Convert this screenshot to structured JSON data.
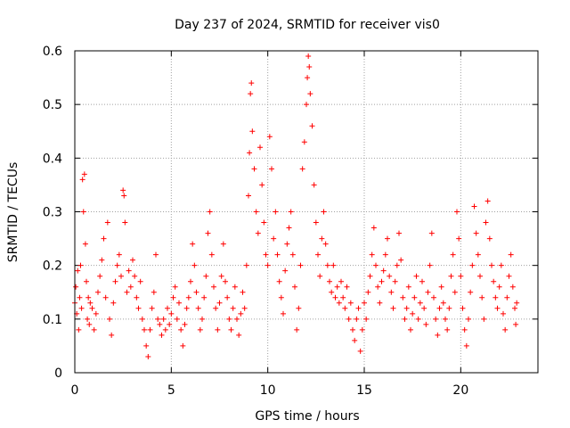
{
  "chart_data": {
    "type": "scatter",
    "title": "Day 237 of 2024, SRMTID for receiver vis0",
    "xlabel": "GPS time / hours",
    "ylabel": "SRMTID / TECUs",
    "xlim": [
      0,
      24
    ],
    "ylim": [
      0,
      0.6
    ],
    "xticks": [
      0,
      5,
      10,
      15,
      20
    ],
    "xtick_labels": [
      "0",
      "5",
      "10",
      "15",
      "20"
    ],
    "yticks": [
      0,
      0.1,
      0.2,
      0.3,
      0.4,
      0.5,
      0.6
    ],
    "ytick_labels": [
      "0",
      "0.1",
      "0.2",
      "0.3",
      "0.4",
      "0.5",
      "0.6"
    ],
    "grid": true,
    "marker": "+",
    "series": [
      {
        "name": "SRMTID",
        "color": "#ff0000",
        "points": [
          [
            0.0,
            0.13
          ],
          [
            0.05,
            0.16
          ],
          [
            0.1,
            0.11
          ],
          [
            0.15,
            0.19
          ],
          [
            0.2,
            0.08
          ],
          [
            0.25,
            0.14
          ],
          [
            0.3,
            0.2
          ],
          [
            0.35,
            0.12
          ],
          [
            0.4,
            0.36
          ],
          [
            0.45,
            0.3
          ],
          [
            0.5,
            0.37
          ],
          [
            0.55,
            0.24
          ],
          [
            0.6,
            0.17
          ],
          [
            0.65,
            0.1
          ],
          [
            0.7,
            0.14
          ],
          [
            0.75,
            0.09
          ],
          [
            0.8,
            0.13
          ],
          [
            0.9,
            0.12
          ],
          [
            1.0,
            0.08
          ],
          [
            1.1,
            0.11
          ],
          [
            1.2,
            0.15
          ],
          [
            1.3,
            0.18
          ],
          [
            1.4,
            0.21
          ],
          [
            1.5,
            0.25
          ],
          [
            1.6,
            0.14
          ],
          [
            1.7,
            0.28
          ],
          [
            1.8,
            0.1
          ],
          [
            1.9,
            0.07
          ],
          [
            2.0,
            0.13
          ],
          [
            2.1,
            0.17
          ],
          [
            2.2,
            0.2
          ],
          [
            2.3,
            0.22
          ],
          [
            2.4,
            0.18
          ],
          [
            2.5,
            0.34
          ],
          [
            2.55,
            0.33
          ],
          [
            2.6,
            0.28
          ],
          [
            2.7,
            0.15
          ],
          [
            2.8,
            0.19
          ],
          [
            2.9,
            0.16
          ],
          [
            3.0,
            0.21
          ],
          [
            3.1,
            0.18
          ],
          [
            3.2,
            0.14
          ],
          [
            3.3,
            0.12
          ],
          [
            3.4,
            0.17
          ],
          [
            3.5,
            0.1
          ],
          [
            3.6,
            0.08
          ],
          [
            3.7,
            0.05
          ],
          [
            3.8,
            0.03
          ],
          [
            3.9,
            0.08
          ],
          [
            4.0,
            0.12
          ],
          [
            4.1,
            0.15
          ],
          [
            4.2,
            0.22
          ],
          [
            4.3,
            0.1
          ],
          [
            4.4,
            0.09
          ],
          [
            4.5,
            0.07
          ],
          [
            4.6,
            0.1
          ],
          [
            4.7,
            0.08
          ],
          [
            4.8,
            0.12
          ],
          [
            4.9,
            0.09
          ],
          [
            5.0,
            0.11
          ],
          [
            5.1,
            0.14
          ],
          [
            5.2,
            0.16
          ],
          [
            5.3,
            0.1
          ],
          [
            5.4,
            0.13
          ],
          [
            5.5,
            0.08
          ],
          [
            5.6,
            0.05
          ],
          [
            5.7,
            0.09
          ],
          [
            5.8,
            0.12
          ],
          [
            5.9,
            0.14
          ],
          [
            6.0,
            0.17
          ],
          [
            6.1,
            0.24
          ],
          [
            6.2,
            0.2
          ],
          [
            6.3,
            0.15
          ],
          [
            6.4,
            0.12
          ],
          [
            6.5,
            0.08
          ],
          [
            6.6,
            0.1
          ],
          [
            6.7,
            0.14
          ],
          [
            6.8,
            0.18
          ],
          [
            6.9,
            0.26
          ],
          [
            7.0,
            0.3
          ],
          [
            7.1,
            0.22
          ],
          [
            7.2,
            0.16
          ],
          [
            7.3,
            0.12
          ],
          [
            7.4,
            0.08
          ],
          [
            7.5,
            0.13
          ],
          [
            7.6,
            0.18
          ],
          [
            7.7,
            0.24
          ],
          [
            7.8,
            0.17
          ],
          [
            7.9,
            0.14
          ],
          [
            8.0,
            0.1
          ],
          [
            8.1,
            0.08
          ],
          [
            8.2,
            0.12
          ],
          [
            8.3,
            0.16
          ],
          [
            8.4,
            0.1
          ],
          [
            8.5,
            0.07
          ],
          [
            8.6,
            0.11
          ],
          [
            8.7,
            0.15
          ],
          [
            8.8,
            0.12
          ],
          [
            8.9,
            0.2
          ],
          [
            9.0,
            0.33
          ],
          [
            9.05,
            0.41
          ],
          [
            9.1,
            0.52
          ],
          [
            9.15,
            0.54
          ],
          [
            9.2,
            0.45
          ],
          [
            9.3,
            0.38
          ],
          [
            9.4,
            0.3
          ],
          [
            9.5,
            0.26
          ],
          [
            9.6,
            0.42
          ],
          [
            9.7,
            0.35
          ],
          [
            9.8,
            0.28
          ],
          [
            9.9,
            0.22
          ],
          [
            10.0,
            0.2
          ],
          [
            10.1,
            0.44
          ],
          [
            10.2,
            0.38
          ],
          [
            10.3,
            0.25
          ],
          [
            10.4,
            0.3
          ],
          [
            10.5,
            0.22
          ],
          [
            10.6,
            0.17
          ],
          [
            10.7,
            0.14
          ],
          [
            10.8,
            0.11
          ],
          [
            10.9,
            0.19
          ],
          [
            11.0,
            0.24
          ],
          [
            11.1,
            0.27
          ],
          [
            11.2,
            0.3
          ],
          [
            11.3,
            0.22
          ],
          [
            11.4,
            0.16
          ],
          [
            11.5,
            0.08
          ],
          [
            11.6,
            0.12
          ],
          [
            11.7,
            0.2
          ],
          [
            11.8,
            0.38
          ],
          [
            11.9,
            0.43
          ],
          [
            12.0,
            0.5
          ],
          [
            12.05,
            0.55
          ],
          [
            12.1,
            0.59
          ],
          [
            12.15,
            0.57
          ],
          [
            12.2,
            0.52
          ],
          [
            12.3,
            0.46
          ],
          [
            12.4,
            0.35
          ],
          [
            12.5,
            0.28
          ],
          [
            12.6,
            0.22
          ],
          [
            12.7,
            0.18
          ],
          [
            12.8,
            0.25
          ],
          [
            12.9,
            0.3
          ],
          [
            13.0,
            0.24
          ],
          [
            13.1,
            0.2
          ],
          [
            13.2,
            0.17
          ],
          [
            13.3,
            0.15
          ],
          [
            13.4,
            0.2
          ],
          [
            13.5,
            0.14
          ],
          [
            13.6,
            0.16
          ],
          [
            13.7,
            0.13
          ],
          [
            13.8,
            0.17
          ],
          [
            13.9,
            0.14
          ],
          [
            14.0,
            0.12
          ],
          [
            14.1,
            0.16
          ],
          [
            14.2,
            0.1
          ],
          [
            14.3,
            0.13
          ],
          [
            14.4,
            0.08
          ],
          [
            14.5,
            0.06
          ],
          [
            14.6,
            0.1
          ],
          [
            14.7,
            0.12
          ],
          [
            14.8,
            0.04
          ],
          [
            14.9,
            0.08
          ],
          [
            15.0,
            0.13
          ],
          [
            15.1,
            0.1
          ],
          [
            15.2,
            0.15
          ],
          [
            15.3,
            0.18
          ],
          [
            15.4,
            0.22
          ],
          [
            15.5,
            0.27
          ],
          [
            15.6,
            0.2
          ],
          [
            15.7,
            0.16
          ],
          [
            15.8,
            0.13
          ],
          [
            15.9,
            0.17
          ],
          [
            16.0,
            0.19
          ],
          [
            16.1,
            0.22
          ],
          [
            16.2,
            0.25
          ],
          [
            16.3,
            0.18
          ],
          [
            16.4,
            0.15
          ],
          [
            16.5,
            0.12
          ],
          [
            16.6,
            0.17
          ],
          [
            16.7,
            0.2
          ],
          [
            16.8,
            0.26
          ],
          [
            16.9,
            0.21
          ],
          [
            17.0,
            0.14
          ],
          [
            17.1,
            0.1
          ],
          [
            17.2,
            0.12
          ],
          [
            17.3,
            0.16
          ],
          [
            17.4,
            0.08
          ],
          [
            17.5,
            0.11
          ],
          [
            17.6,
            0.14
          ],
          [
            17.7,
            0.18
          ],
          [
            17.8,
            0.1
          ],
          [
            17.9,
            0.13
          ],
          [
            18.0,
            0.17
          ],
          [
            18.1,
            0.12
          ],
          [
            18.2,
            0.09
          ],
          [
            18.3,
            0.15
          ],
          [
            18.4,
            0.2
          ],
          [
            18.5,
            0.26
          ],
          [
            18.6,
            0.14
          ],
          [
            18.7,
            0.1
          ],
          [
            18.8,
            0.07
          ],
          [
            18.9,
            0.12
          ],
          [
            19.0,
            0.16
          ],
          [
            19.1,
            0.13
          ],
          [
            19.2,
            0.1
          ],
          [
            19.3,
            0.08
          ],
          [
            19.4,
            0.12
          ],
          [
            19.5,
            0.18
          ],
          [
            19.6,
            0.22
          ],
          [
            19.7,
            0.15
          ],
          [
            19.8,
            0.3
          ],
          [
            19.9,
            0.25
          ],
          [
            20.0,
            0.18
          ],
          [
            20.1,
            0.12
          ],
          [
            20.2,
            0.08
          ],
          [
            20.3,
            0.05
          ],
          [
            20.4,
            0.1
          ],
          [
            20.5,
            0.15
          ],
          [
            20.6,
            0.2
          ],
          [
            20.7,
            0.31
          ],
          [
            20.8,
            0.26
          ],
          [
            20.9,
            0.22
          ],
          [
            21.0,
            0.18
          ],
          [
            21.1,
            0.14
          ],
          [
            21.2,
            0.1
          ],
          [
            21.3,
            0.28
          ],
          [
            21.4,
            0.32
          ],
          [
            21.5,
            0.25
          ],
          [
            21.6,
            0.2
          ],
          [
            21.7,
            0.17
          ],
          [
            21.8,
            0.14
          ],
          [
            21.9,
            0.12
          ],
          [
            22.0,
            0.16
          ],
          [
            22.1,
            0.2
          ],
          [
            22.2,
            0.11
          ],
          [
            22.3,
            0.08
          ],
          [
            22.4,
            0.14
          ],
          [
            22.5,
            0.18
          ],
          [
            22.6,
            0.22
          ],
          [
            22.7,
            0.16
          ],
          [
            22.8,
            0.12
          ],
          [
            22.85,
            0.09
          ],
          [
            22.9,
            0.13
          ]
        ]
      }
    ]
  }
}
